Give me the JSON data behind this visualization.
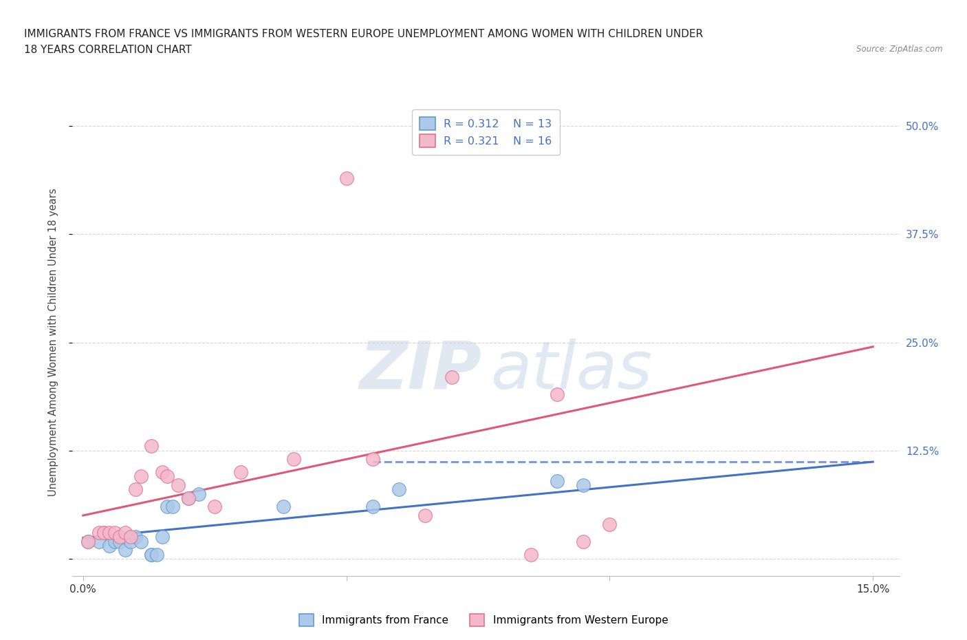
{
  "title_line1": "IMMIGRANTS FROM FRANCE VS IMMIGRANTS FROM WESTERN EUROPE UNEMPLOYMENT AMONG WOMEN WITH CHILDREN UNDER",
  "title_line2": "18 YEARS CORRELATION CHART",
  "source": "Source: ZipAtlas.com",
  "ylabel": "Unemployment Among Women with Children Under 18 years",
  "xlim": [
    -0.002,
    0.155
  ],
  "ylim": [
    -0.02,
    0.52
  ],
  "france_color": "#adc8e8",
  "france_edge_color": "#5b9bd5",
  "france_line_color": "#4472c4",
  "western_color": "#f4b8cb",
  "western_edge_color": "#e07090",
  "western_line_color": "#e05878",
  "background_color": "#ffffff",
  "grid_color": "#cccccc",
  "title_color": "#222222",
  "axis_label_color": "#444444",
  "tick_color_right": "#4472c4",
  "france_x": [
    0.001,
    0.003,
    0.004,
    0.005,
    0.006,
    0.007,
    0.008,
    0.009,
    0.01,
    0.011,
    0.013,
    0.013,
    0.014,
    0.015,
    0.016,
    0.017,
    0.02,
    0.022,
    0.038,
    0.055,
    0.06,
    0.09,
    0.095
  ],
  "france_y": [
    0.02,
    0.02,
    0.03,
    0.015,
    0.02,
    0.02,
    0.01,
    0.02,
    0.025,
    0.02,
    0.005,
    0.005,
    0.005,
    0.025,
    0.06,
    0.06,
    0.07,
    0.075,
    0.06,
    0.06,
    0.08,
    0.09,
    0.085
  ],
  "western_x": [
    0.001,
    0.003,
    0.004,
    0.005,
    0.006,
    0.007,
    0.008,
    0.009,
    0.01,
    0.011,
    0.013,
    0.015,
    0.016,
    0.018,
    0.02,
    0.025,
    0.03,
    0.04,
    0.05,
    0.055,
    0.065,
    0.07,
    0.085,
    0.09,
    0.095,
    0.1
  ],
  "western_y": [
    0.02,
    0.03,
    0.03,
    0.03,
    0.03,
    0.025,
    0.03,
    0.025,
    0.08,
    0.095,
    0.13,
    0.1,
    0.095,
    0.085,
    0.07,
    0.06,
    0.1,
    0.115,
    0.44,
    0.115,
    0.05,
    0.21,
    0.005,
    0.19,
    0.02,
    0.04
  ],
  "france_line_x": [
    0.0,
    0.15
  ],
  "france_line_y": [
    0.024,
    0.112
  ],
  "western_line_x": [
    0.0,
    0.15
  ],
  "western_line_y": [
    0.05,
    0.245
  ],
  "watermark_zip": "ZIP",
  "watermark_atlas": "atlas"
}
